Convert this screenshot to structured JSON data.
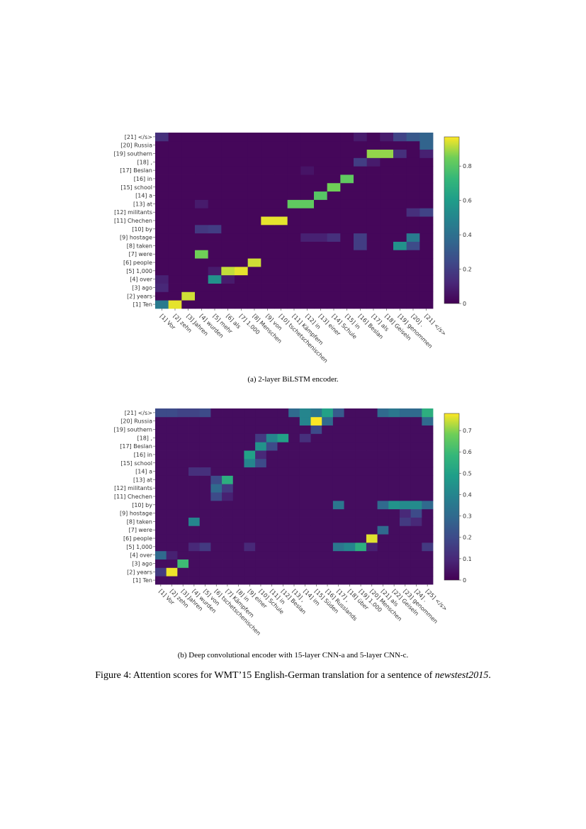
{
  "chart_data": [
    {
      "type": "heatmap",
      "caption": "(a) 2-layer BiLSTM encoder.",
      "colorscale": "viridis",
      "zmin": 0,
      "zmax": 0.97,
      "colorbar_ticks": [
        "0",
        "0.2",
        "0.4",
        "0.6",
        "0.8"
      ],
      "colorbar_values": [
        0,
        0.2,
        0.4,
        0.6,
        0.8
      ],
      "x_labels": [
        "[1] Vor",
        "[2] zehn",
        "[3] Jahren",
        "[4] wurden",
        "[5] mehr",
        "[6] als",
        "[7] 1.000",
        "[8] Menschen",
        "[9] von",
        "[10] tschetschenischen",
        "[11] Kämpfern",
        "[12] in",
        "[13] einer",
        "[14] Schule",
        "[15] in",
        "[16] Beslan",
        "[17] als",
        "[18] Geiseln",
        "[19] genommen",
        "[20] .",
        "[21] </s>"
      ],
      "y_labels": [
        "[1] Ten",
        "[2] years",
        "[3] ago",
        "[4] over",
        "[5] 1,000",
        "[6] people",
        "[7] were",
        "[8] taken",
        "[9] hostage",
        "[10] by",
        "[11] Chechen",
        "[12] militants",
        "[13] at",
        "[14] a",
        "[15] school",
        "[16] in",
        "[17] Beslan",
        "[18] ,",
        "[19] southern",
        "[20] Russia",
        "[21] </s>"
      ],
      "background": 0.02,
      "cells": [
        [
          0,
          0,
          0.45
        ],
        [
          0,
          1,
          0.95
        ],
        [
          1,
          2,
          0.93
        ],
        [
          2,
          0,
          0.12
        ],
        [
          3,
          0,
          0.1
        ],
        [
          3,
          4,
          0.55
        ],
        [
          3,
          5,
          0.08
        ],
        [
          4,
          5,
          0.92
        ],
        [
          4,
          6,
          0.95
        ],
        [
          4,
          4,
          0.08
        ],
        [
          5,
          7,
          0.93
        ],
        [
          6,
          3,
          0.85
        ],
        [
          7,
          15,
          0.2
        ],
        [
          7,
          18,
          0.55
        ],
        [
          7,
          19,
          0.25
        ],
        [
          8,
          11,
          0.1
        ],
        [
          8,
          12,
          0.1
        ],
        [
          8,
          15,
          0.2
        ],
        [
          8,
          19,
          0.45
        ],
        [
          8,
          13,
          0.15
        ],
        [
          9,
          3,
          0.18
        ],
        [
          9,
          4,
          0.2
        ],
        [
          10,
          8,
          0.95
        ],
        [
          10,
          9,
          0.95
        ],
        [
          11,
          19,
          0.15
        ],
        [
          11,
          20,
          0.22
        ],
        [
          12,
          10,
          0.82
        ],
        [
          12,
          11,
          0.82
        ],
        [
          12,
          3,
          0.08
        ],
        [
          13,
          12,
          0.8
        ],
        [
          14,
          13,
          0.85
        ],
        [
          15,
          14,
          0.82
        ],
        [
          16,
          11,
          0.06
        ],
        [
          17,
          15,
          0.2
        ],
        [
          17,
          16,
          0.08
        ],
        [
          18,
          16,
          0.88
        ],
        [
          18,
          17,
          0.88
        ],
        [
          18,
          18,
          0.15
        ],
        [
          18,
          20,
          0.1
        ],
        [
          19,
          20,
          0.35
        ],
        [
          20,
          0,
          0.15
        ],
        [
          20,
          17,
          0.08
        ],
        [
          20,
          18,
          0.22
        ],
        [
          20,
          19,
          0.3
        ],
        [
          20,
          20,
          0.35
        ],
        [
          20,
          15,
          0.08
        ]
      ]
    },
    {
      "type": "heatmap",
      "caption": "(b) Deep convolutional encoder with 15-layer CNN-a and 5-layer CNN-c.",
      "colorscale": "viridis",
      "zmin": 0,
      "zmax": 0.78,
      "colorbar_ticks": [
        "0",
        "0.1",
        "0.2",
        "0.3",
        "0.4",
        "0.5",
        "0.6",
        "0.7"
      ],
      "colorbar_values": [
        0,
        0.1,
        0.2,
        0.3,
        0.4,
        0.5,
        0.6,
        0.7
      ],
      "x_labels": [
        "[1] Vor",
        "[2] zehn",
        "[3] Jahren",
        "[4] wurden",
        "[5] von",
        "[6] tschetschenischen",
        "[7] Kämpfern",
        "[8] in",
        "[9] einer",
        "[10] Schule",
        "[11] in",
        "[12] Beslan",
        "[13] ,",
        "[14] im",
        "[15] Süden",
        "[16] Russlands",
        "[17] ,",
        "[18] über",
        "[19] 1.000",
        "[20] Menschen",
        "[21] als",
        "[22] Geiseln",
        "[23] genommen",
        "[24] .",
        "[25] </s>"
      ],
      "y_labels": [
        "[1] Ten",
        "[2] years",
        "[3] ago",
        "[4] over",
        "[5] 1,000",
        "[6] people",
        "[7] were",
        "[8] taken",
        "[9] hostage",
        "[10] by",
        "[11] Chechen",
        "[12] militants",
        "[13] at",
        "[14] a",
        "[15] school",
        "[16] in",
        "[17] Beslan",
        "[18] ,",
        "[19] southern",
        "[20] Russia",
        "[21] </s>"
      ],
      "background": 0.03,
      "cells": [
        [
          1,
          0,
          0.15
        ],
        [
          1,
          1,
          0.77
        ],
        [
          2,
          2,
          0.6
        ],
        [
          3,
          0,
          0.3
        ],
        [
          3,
          1,
          0.08
        ],
        [
          4,
          3,
          0.1
        ],
        [
          4,
          4,
          0.15
        ],
        [
          4,
          8,
          0.1
        ],
        [
          4,
          17,
          0.4
        ],
        [
          4,
          18,
          0.55
        ],
        [
          4,
          16,
          0.35
        ],
        [
          4,
          19,
          0.08
        ],
        [
          4,
          24,
          0.15
        ],
        [
          5,
          19,
          0.76
        ],
        [
          6,
          20,
          0.3
        ],
        [
          7,
          3,
          0.4
        ],
        [
          7,
          22,
          0.15
        ],
        [
          7,
          23,
          0.1
        ],
        [
          8,
          23,
          0.2
        ],
        [
          8,
          22,
          0.1
        ],
        [
          9,
          16,
          0.35
        ],
        [
          9,
          21,
          0.45
        ],
        [
          9,
          22,
          0.42
        ],
        [
          9,
          23,
          0.42
        ],
        [
          9,
          24,
          0.3
        ],
        [
          9,
          20,
          0.3
        ],
        [
          10,
          5,
          0.2
        ],
        [
          10,
          6,
          0.08
        ],
        [
          11,
          5,
          0.3
        ],
        [
          11,
          6,
          0.15
        ],
        [
          12,
          6,
          0.55
        ],
        [
          12,
          5,
          0.2
        ],
        [
          13,
          3,
          0.12
        ],
        [
          13,
          4,
          0.12
        ],
        [
          14,
          8,
          0.4
        ],
        [
          14,
          9,
          0.2
        ],
        [
          15,
          8,
          0.5
        ],
        [
          15,
          9,
          0.1
        ],
        [
          16,
          9,
          0.45
        ],
        [
          16,
          10,
          0.2
        ],
        [
          17,
          10,
          0.4
        ],
        [
          17,
          11,
          0.5
        ],
        [
          17,
          9,
          0.15
        ],
        [
          17,
          13,
          0.12
        ],
        [
          18,
          14,
          0.2
        ],
        [
          19,
          13,
          0.4
        ],
        [
          19,
          14,
          0.78
        ],
        [
          19,
          15,
          0.3
        ],
        [
          19,
          24,
          0.3
        ],
        [
          20,
          0,
          0.2
        ],
        [
          20,
          1,
          0.2
        ],
        [
          20,
          2,
          0.18
        ],
        [
          20,
          3,
          0.18
        ],
        [
          20,
          4,
          0.2
        ],
        [
          20,
          12,
          0.3
        ],
        [
          20,
          13,
          0.4
        ],
        [
          20,
          14,
          0.35
        ],
        [
          20,
          15,
          0.5
        ],
        [
          20,
          16,
          0.25
        ],
        [
          20,
          20,
          0.3
        ],
        [
          20,
          21,
          0.35
        ],
        [
          20,
          22,
          0.3
        ],
        [
          20,
          23,
          0.3
        ],
        [
          20,
          24,
          0.55
        ]
      ]
    }
  ],
  "figure_caption": {
    "prefix": "Figure 4: Attention scores for WMT’15 English-German translation for a sentence of ",
    "emphasis": "newstest2015",
    "suffix": "."
  }
}
